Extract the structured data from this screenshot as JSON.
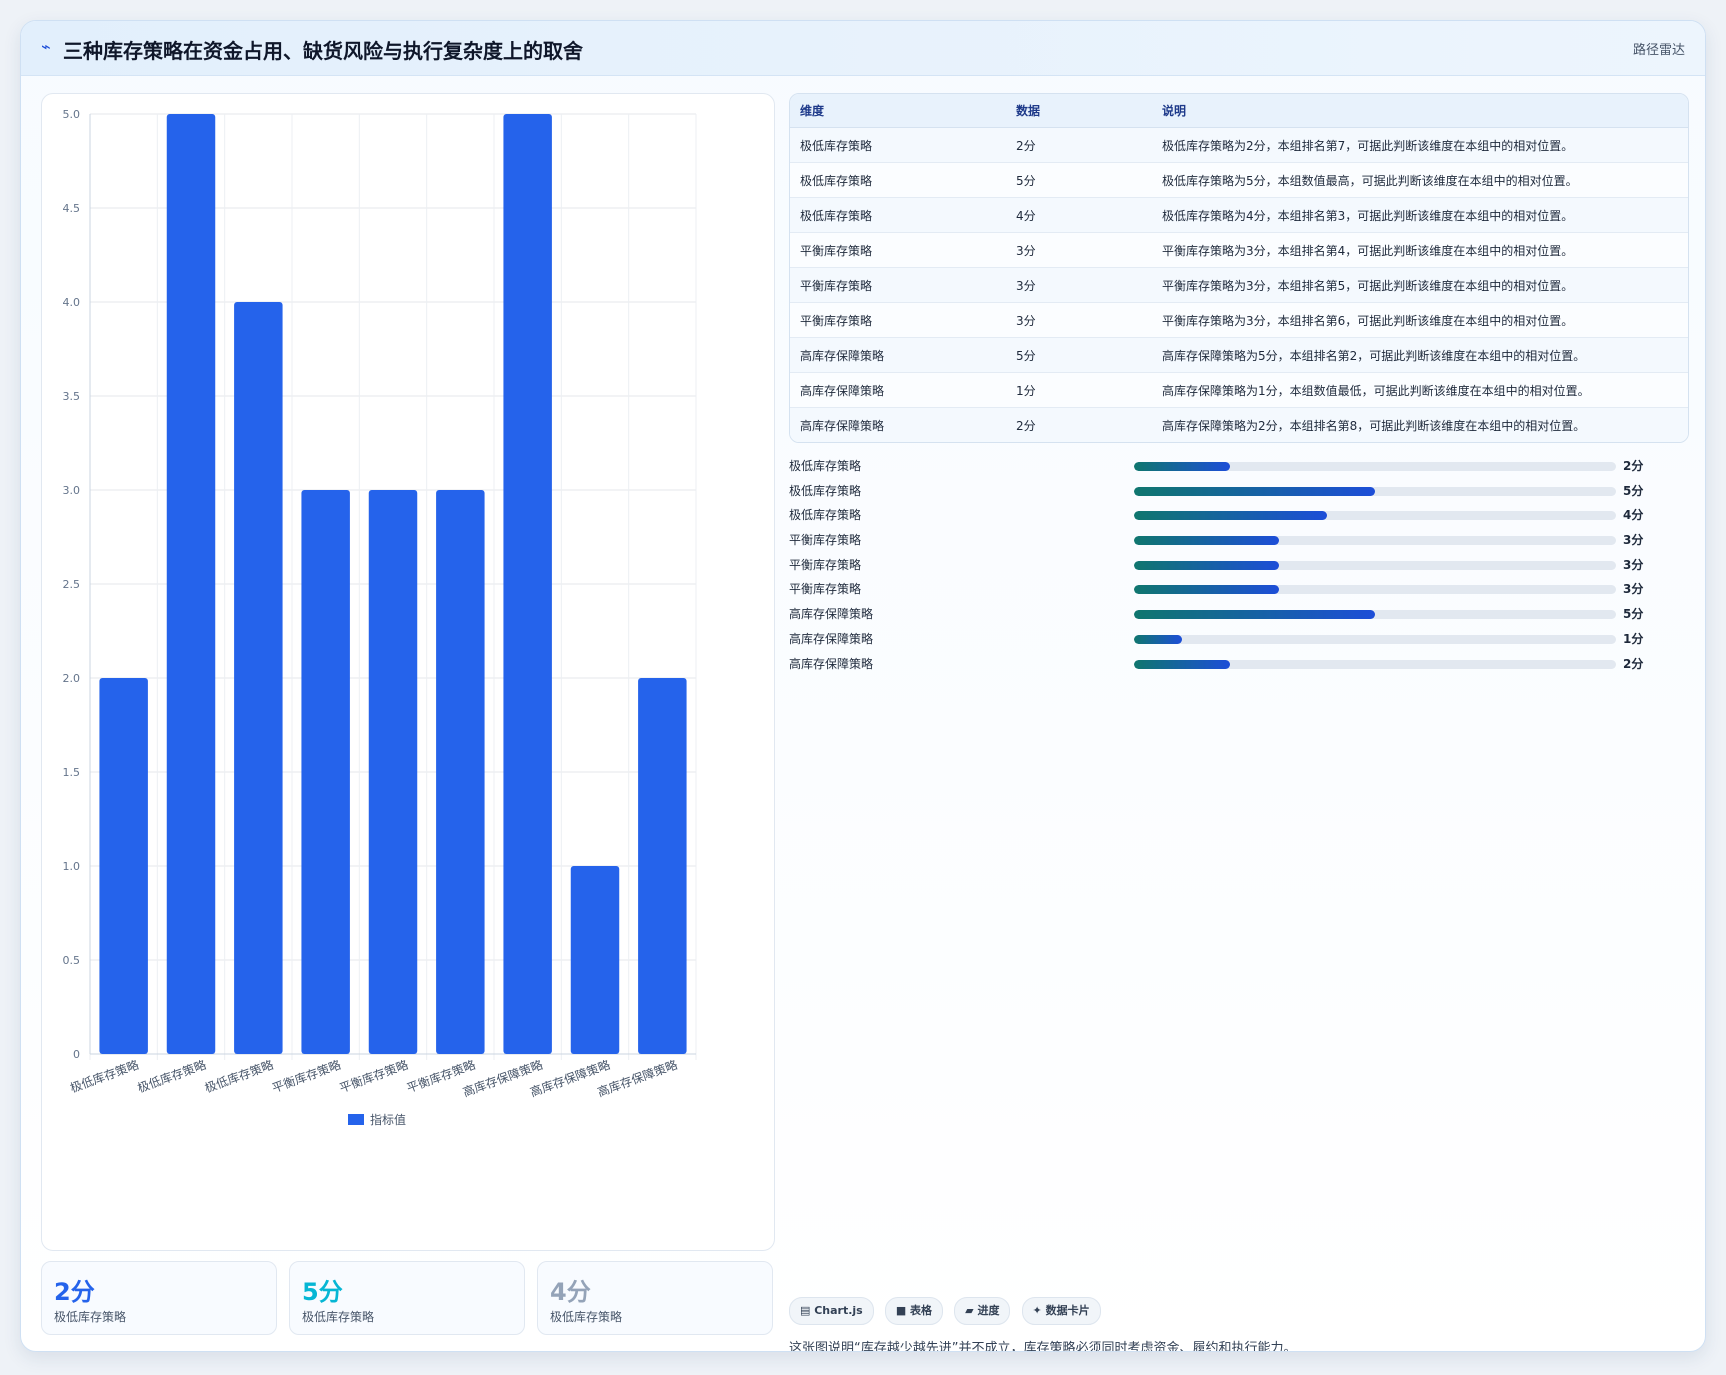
{
  "header": {
    "icon": "pulse-icon",
    "title": "三种库存策略在资金占用、缺货风险与执行复杂度上的取舍",
    "right_label": "路径雷达"
  },
  "chart_data": {
    "type": "bar",
    "categories": [
      "极低库存策略",
      "极低库存策略",
      "极低库存策略",
      "平衡库存策略",
      "平衡库存策略",
      "平衡库存策略",
      "高库存保障策略",
      "高库存保障策略",
      "高库存保障策略"
    ],
    "series": [
      {
        "name": "指标值",
        "values": [
          2,
          5,
          4,
          3,
          3,
          3,
          5,
          1,
          2
        ]
      }
    ],
    "ylim": [
      0,
      5
    ],
    "yticks": [
      "0",
      "0.5",
      "1.0",
      "1.5",
      "2.0",
      "2.5",
      "3.0",
      "3.5",
      "4.0",
      "4.5",
      "5.0"
    ],
    "grid": true,
    "legend": "bottom",
    "bar_color": "#2563eb"
  },
  "table": {
    "headers": [
      "维度",
      "数据",
      "说明"
    ],
    "rows": [
      [
        "极低库存策略",
        "2分",
        "极低库存策略为2分，本组排名第7，可据此判断该维度在本组中的相对位置。"
      ],
      [
        "极低库存策略",
        "5分",
        "极低库存策略为5分，本组数值最高，可据此判断该维度在本组中的相对位置。"
      ],
      [
        "极低库存策略",
        "4分",
        "极低库存策略为4分，本组排名第3，可据此判断该维度在本组中的相对位置。"
      ],
      [
        "平衡库存策略",
        "3分",
        "平衡库存策略为3分，本组排名第4，可据此判断该维度在本组中的相对位置。"
      ],
      [
        "平衡库存策略",
        "3分",
        "平衡库存策略为3分，本组排名第5，可据此判断该维度在本组中的相对位置。"
      ],
      [
        "平衡库存策略",
        "3分",
        "平衡库存策略为3分，本组排名第6，可据此判断该维度在本组中的相对位置。"
      ],
      [
        "高库存保障策略",
        "5分",
        "高库存保障策略为5分，本组排名第2，可据此判断该维度在本组中的相对位置。"
      ],
      [
        "高库存保障策略",
        "1分",
        "高库存保障策略为1分，本组数值最低，可据此判断该维度在本组中的相对位置。"
      ],
      [
        "高库存保障策略",
        "2分",
        "高库存保障策略为2分，本组排名第8，可据此判断该维度在本组中的相对位置。"
      ]
    ]
  },
  "progress": {
    "items": [
      {
        "label": "极低库存策略",
        "value": "2分",
        "fraction": 0.2
      },
      {
        "label": "极低库存策略",
        "value": "5分",
        "fraction": 0.5
      },
      {
        "label": "极低库存策略",
        "value": "4分",
        "fraction": 0.4
      },
      {
        "label": "平衡库存策略",
        "value": "3分",
        "fraction": 0.3
      },
      {
        "label": "平衡库存策略",
        "value": "3分",
        "fraction": 0.3
      },
      {
        "label": "平衡库存策略",
        "value": "3分",
        "fraction": 0.3
      },
      {
        "label": "高库存保障策略",
        "value": "5分",
        "fraction": 0.5
      },
      {
        "label": "高库存保障策略",
        "value": "1分",
        "fraction": 0.1
      },
      {
        "label": "高库存保障策略",
        "value": "2分",
        "fraction": 0.2
      }
    ]
  },
  "stats": [
    {
      "value": "2分",
      "label": "极低库存策略",
      "color": "#2563eb"
    },
    {
      "value": "5分",
      "label": "极低库存策略",
      "color": "#06b6d4"
    },
    {
      "value": "4分",
      "label": "极低库存策略",
      "color": "#94a3b8"
    }
  ],
  "tags": [
    "▤ Chart.js",
    "■ 表格",
    "▰ 进度",
    "✦ 数据卡片"
  ],
  "note": "这张图说明“库存越少越先进”并不成立，库存策略必须同时考虑资金、履约和执行能力。"
}
